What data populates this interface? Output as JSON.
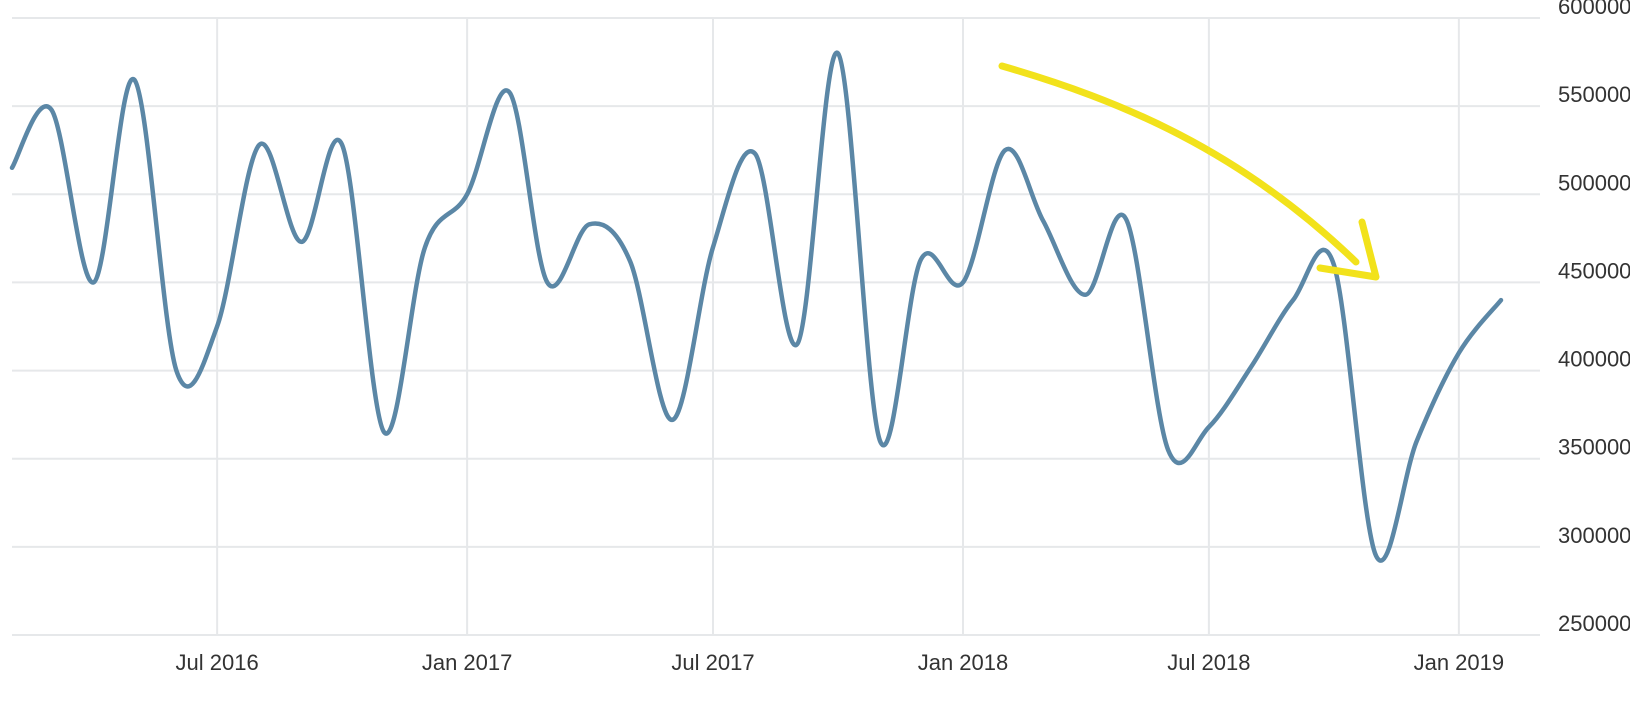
{
  "chart_data": {
    "type": "line",
    "title": "",
    "xlabel": "",
    "ylabel": "",
    "x_tick_labels": [
      "Jul 2016",
      "Jan 2017",
      "Jul 2017",
      "Jan 2018",
      "Jul 2018",
      "Jan 2019"
    ],
    "x_tick_dates": [
      "2016-07-01",
      "2017-01-01",
      "2017-07-01",
      "2018-01-01",
      "2018-07-01",
      "2019-01-01"
    ],
    "x_range": [
      "2016-02-01",
      "2019-02-15"
    ],
    "y_ticks": [
      250000,
      300000,
      350000,
      400000,
      450000,
      500000,
      550000,
      600000
    ],
    "y_tick_labels": [
      "250000",
      "300000",
      "350000",
      "400000",
      "450000",
      "500000",
      "550000",
      "600000"
    ],
    "ylim": [
      250000,
      600000
    ],
    "y_axis_position": "right",
    "grid": true,
    "legend": "none",
    "line_color": "#5b87a6",
    "annotation": {
      "type": "arrow",
      "color": "#f2e21b",
      "description_direction": "downward trend"
    },
    "series": [
      {
        "x": [
          "2016-02-01",
          "2016-03-01",
          "2016-04-01",
          "2016-05-01",
          "2016-06-01",
          "2016-07-01",
          "2016-08-01",
          "2016-09-01",
          "2016-10-01",
          "2016-11-01",
          "2016-12-01",
          "2017-01-01",
          "2017-02-01",
          "2017-03-01",
          "2017-04-01",
          "2017-05-01",
          "2017-06-01",
          "2017-07-01",
          "2017-08-01",
          "2017-09-01",
          "2017-10-01",
          "2017-11-01",
          "2017-12-01",
          "2018-01-01",
          "2018-02-01",
          "2018-03-01",
          "2018-04-01",
          "2018-05-01",
          "2018-06-01",
          "2018-07-01",
          "2018-08-01",
          "2018-09-01",
          "2018-10-01",
          "2018-11-01",
          "2018-12-01",
          "2019-01-01",
          "2019-02-01"
        ],
        "values": [
          515000,
          548000,
          450000,
          565000,
          400000,
          425000,
          528000,
          473000,
          528000,
          365000,
          470000,
          500000,
          558000,
          450000,
          483000,
          462000,
          372000,
          470000,
          523000,
          415000,
          580000,
          360000,
          463000,
          450000,
          525000,
          485000,
          443000,
          486000,
          355000,
          368000,
          402000,
          440000,
          460000,
          295000,
          360000,
          410000,
          440000
        ]
      }
    ]
  }
}
